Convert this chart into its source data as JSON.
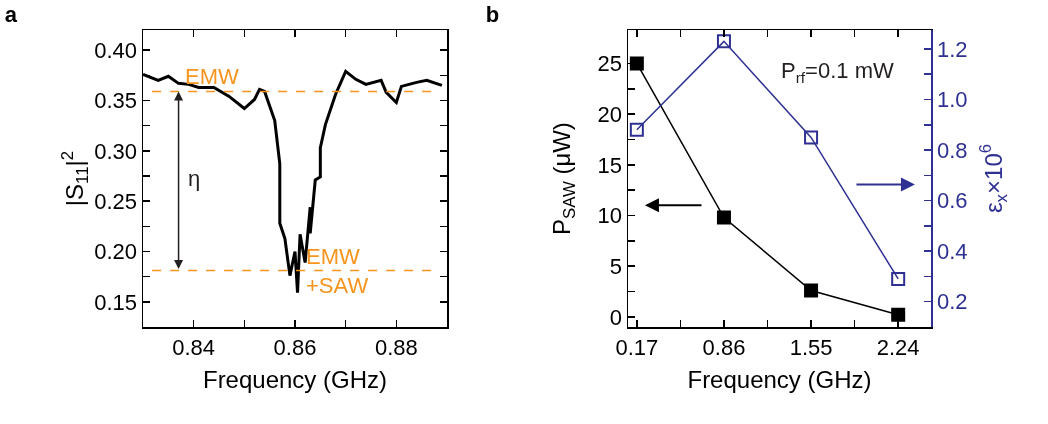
{
  "chart_data": [
    {
      "type": "line",
      "title": "a",
      "xlabel": "Frequency (GHz)",
      "ylabel": "|S$_{11}$|$^{2}$",
      "x": [
        0.83,
        0.833,
        0.835,
        0.837,
        0.839,
        0.841,
        0.844,
        0.846,
        0.847,
        0.85,
        0.852,
        0.853,
        0.854,
        0.856,
        0.857,
        0.857,
        0.858,
        0.859,
        0.86,
        0.8605,
        0.861,
        0.862,
        0.863,
        0.863,
        0.864,
        0.865,
        0.865,
        0.866,
        0.868,
        0.87,
        0.872,
        0.874,
        0.877,
        0.878,
        0.88,
        0.881,
        0.884,
        0.886,
        0.889
      ],
      "series": [
        {
          "color": "#000000",
          "values": [
            0.376,
            0.37,
            0.374,
            0.367,
            0.366,
            0.363,
            0.363,
            0.357,
            0.354,
            0.342,
            0.351,
            0.361,
            0.359,
            0.33,
            0.287,
            0.228,
            0.213,
            0.176,
            0.2,
            0.159,
            0.217,
            0.189,
            0.244,
            0.218,
            0.271,
            0.274,
            0.303,
            0.326,
            0.356,
            0.379,
            0.371,
            0.366,
            0.37,
            0.358,
            0.348,
            0.364,
            0.368,
            0.37,
            0.365
          ]
        }
      ],
      "xlim": [
        0.83,
        0.89
      ],
      "xticks": [
        0.84,
        {
          "value": 0.85,
          "label": null
        },
        0.86,
        {
          "value": 0.87,
          "label": null
        },
        0.88
      ],
      "ylim": [
        0.125,
        0.42
      ],
      "yticks": [
        0.15,
        {
          "value": 0.175,
          "label": null
        },
        {
          "value": 0.2,
          "label": "0.20"
        },
        {
          "value": 0.225,
          "label": null
        },
        0.25,
        {
          "value": 0.275,
          "label": null
        },
        {
          "value": 0.3,
          "label": "0.30"
        },
        {
          "value": 0.325,
          "label": null
        },
        0.35,
        {
          "value": 0.375,
          "label": null
        },
        {
          "value": 0.4,
          "label": "0.40"
        }
      ],
      "ref_lines": [
        {
          "axis": "y",
          "value": 0.359,
          "label": "EMW",
          "color": "#f7941d",
          "line_style": "dashed"
        },
        {
          "axis": "y",
          "value": 0.181,
          "label": "EMW\n+SAW",
          "color": "#f7941d",
          "line_style": "dashed"
        }
      ],
      "annotations": [
        "η"
      ],
      "grid": false,
      "marker": "none",
      "line_style": "solid"
    },
    {
      "type": "line",
      "title": "b",
      "xlabel": "Frequency (GHz)",
      "ylabel": "P$_{SAW}$ (μW)",
      "y2label": "ε$_{x}$×10$^{6}$",
      "x": [
        0.17,
        0.86,
        1.55,
        2.24
      ],
      "series": [
        {
          "color": "#000000",
          "values": [
            25,
            9.8,
            2.6,
            0.2
          ]
        },
        {
          "color": "#2e3192",
          "values": [
            0.88,
            1.23,
            0.85,
            0.29
          ],
          "axis": "y2"
        }
      ],
      "xlim": [
        0.1,
        2.5
      ],
      "xticks": [
        0.17,
        {
          "value": 0.515,
          "label": null
        },
        0.86,
        {
          "value": 1.205,
          "label": null
        },
        1.55,
        {
          "value": 1.895,
          "label": null
        },
        2.24
      ],
      "ylim": [
        -1,
        28.3
      ],
      "yticks": [
        0,
        {
          "value": 2.5,
          "label": null
        },
        5,
        {
          "value": 7.5,
          "label": null
        },
        10,
        {
          "value": 12.5,
          "label": null
        },
        15,
        {
          "value": 17.5,
          "label": null
        },
        20,
        {
          "value": 22.5,
          "label": null
        },
        25
      ],
      "y2lim": [
        0.1,
        1.275
      ],
      "y2ticks": [
        0.2,
        {
          "value": 0.3,
          "label": null
        },
        0.4,
        {
          "value": 0.5,
          "label": null
        },
        0.6,
        {
          "value": 0.7,
          "label": null
        },
        0.8,
        {
          "value": 0.9,
          "label": null
        },
        {
          "value": 1,
          "label": "1.0"
        },
        {
          "value": 1.1,
          "label": null
        },
        1.2
      ],
      "annotations": [
        "P$_{rf}$=0.1 mW"
      ],
      "grid": false,
      "marker": "square",
      "line_style": "solid"
    }
  ]
}
